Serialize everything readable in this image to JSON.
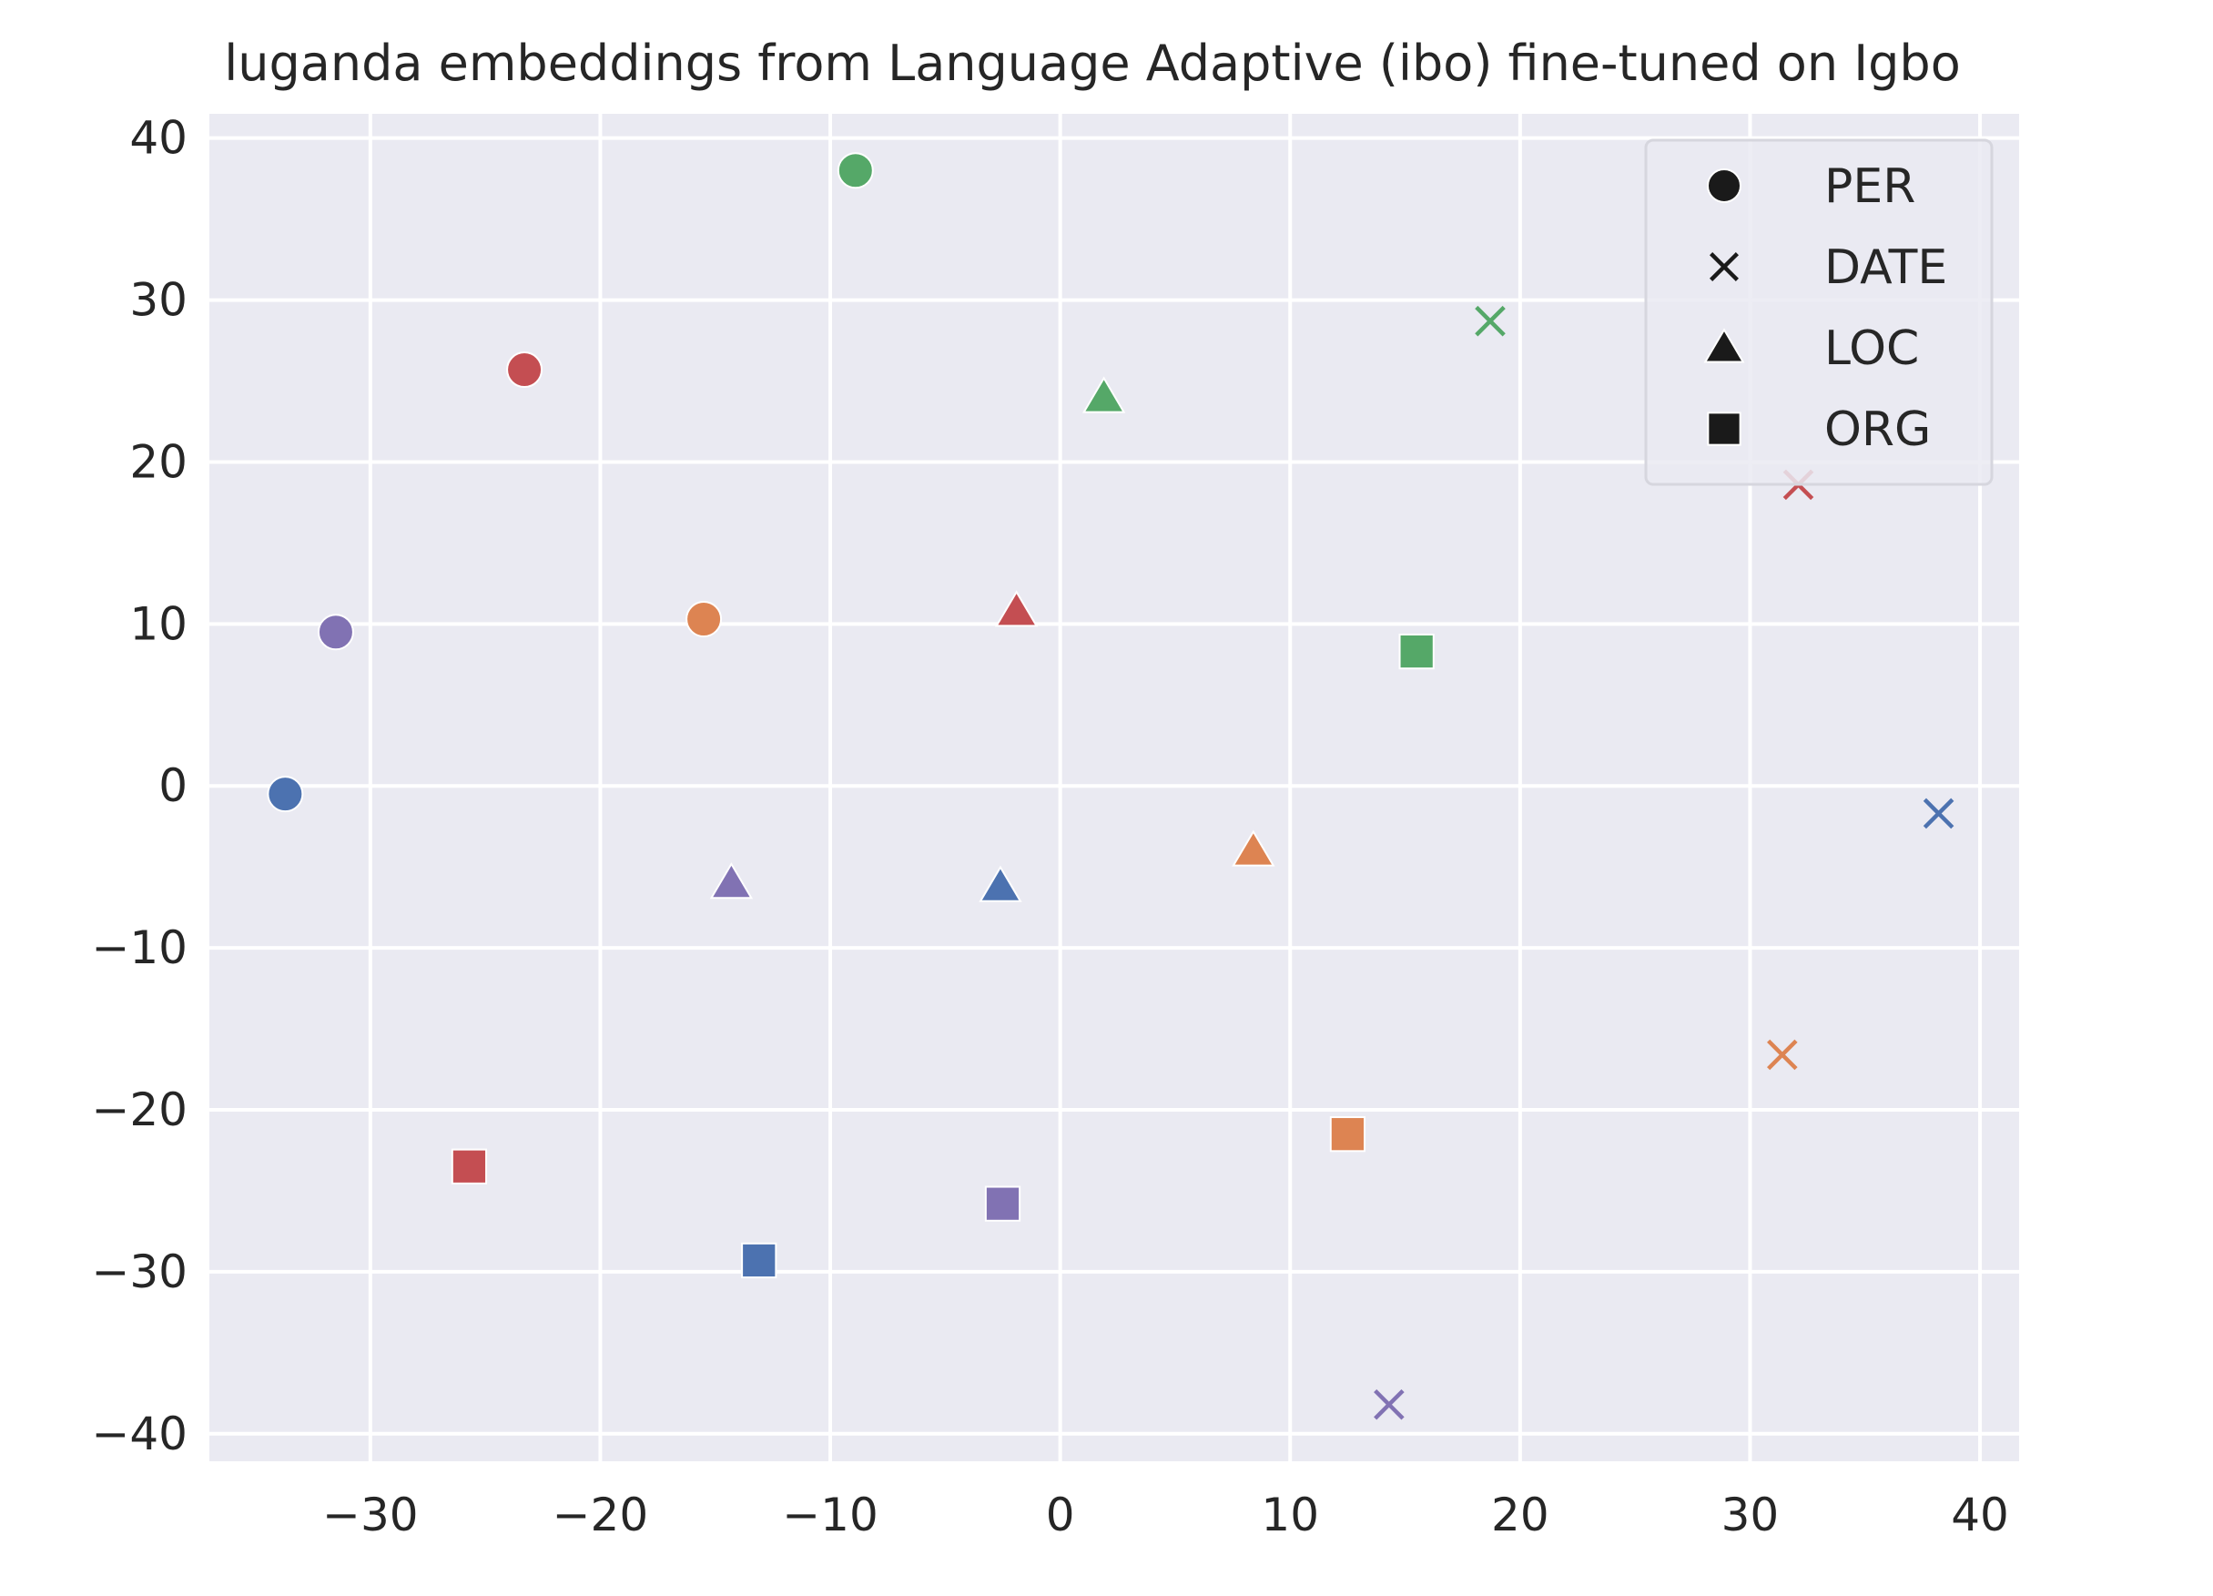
{
  "chart_data": {
    "type": "scatter",
    "title": "luganda embeddings from Language Adaptive (ibo) fine-tuned on Igbo",
    "xlabel": "",
    "ylabel": "",
    "xlim": [
      -37,
      41.7
    ],
    "ylim": [
      -41.7,
      41.5
    ],
    "xticks": [
      -30,
      -20,
      -10,
      0,
      10,
      20,
      30,
      40
    ],
    "xtick_labels": [
      "−30",
      "−20",
      "−10",
      "0",
      "10",
      "20",
      "30",
      "40"
    ],
    "yticks": [
      -40,
      -30,
      -20,
      -10,
      0,
      10,
      20,
      30,
      40
    ],
    "ytick_labels": [
      "−40",
      "−30",
      "−20",
      "−10",
      "0",
      "10",
      "20",
      "30",
      "40"
    ],
    "grid": true,
    "legend_position": "top-right",
    "legend": [
      {
        "label": "PER",
        "marker": "circle"
      },
      {
        "label": "DATE",
        "marker": "x"
      },
      {
        "label": "LOC",
        "marker": "triangle"
      },
      {
        "label": "ORG",
        "marker": "square"
      }
    ],
    "colors": {
      "background": "#eaeaf2",
      "grid": "#ffffff",
      "text": "#262626",
      "legend_marker": "#1a1a1a",
      "blue": "#4c72b0",
      "orange": "#dd8452",
      "green": "#55a868",
      "red": "#c44e52",
      "purple": "#8172b3"
    },
    "points": [
      {
        "x": -33.7,
        "y": -0.5,
        "marker": "circle",
        "color": "blue"
      },
      {
        "x": -31.5,
        "y": 9.5,
        "marker": "circle",
        "color": "purple"
      },
      {
        "x": -23.3,
        "y": 25.7,
        "marker": "circle",
        "color": "red"
      },
      {
        "x": -15.5,
        "y": 10.3,
        "marker": "circle",
        "color": "orange"
      },
      {
        "x": -8.9,
        "y": 38.0,
        "marker": "circle",
        "color": "green"
      },
      {
        "x": 18.7,
        "y": 28.7,
        "marker": "x",
        "color": "green"
      },
      {
        "x": 32.1,
        "y": 18.6,
        "marker": "x",
        "color": "red"
      },
      {
        "x": 38.2,
        "y": -1.7,
        "marker": "x",
        "color": "blue"
      },
      {
        "x": 31.4,
        "y": -16.6,
        "marker": "x",
        "color": "orange"
      },
      {
        "x": 14.3,
        "y": -38.2,
        "marker": "x",
        "color": "purple"
      },
      {
        "x": 1.9,
        "y": 24.0,
        "marker": "triangle",
        "color": "green"
      },
      {
        "x": -1.9,
        "y": 10.8,
        "marker": "triangle",
        "color": "red"
      },
      {
        "x": 8.4,
        "y": -4.0,
        "marker": "triangle",
        "color": "orange"
      },
      {
        "x": -14.3,
        "y": -6.0,
        "marker": "triangle",
        "color": "purple"
      },
      {
        "x": -2.6,
        "y": -6.2,
        "marker": "triangle",
        "color": "blue"
      },
      {
        "x": 15.5,
        "y": 8.3,
        "marker": "square",
        "color": "green"
      },
      {
        "x": 12.5,
        "y": -21.5,
        "marker": "square",
        "color": "orange"
      },
      {
        "x": -25.7,
        "y": -23.5,
        "marker": "square",
        "color": "red"
      },
      {
        "x": -13.1,
        "y": -29.3,
        "marker": "square",
        "color": "blue"
      },
      {
        "x": -2.5,
        "y": -25.8,
        "marker": "square",
        "color": "purple"
      }
    ]
  }
}
